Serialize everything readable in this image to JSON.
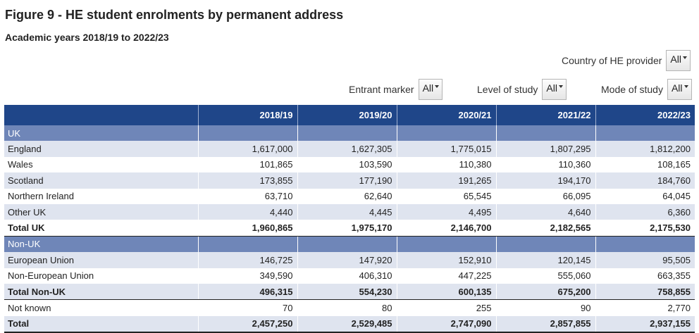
{
  "title": "Figure 9 - HE student enrolments by permanent address",
  "subtitle": "Academic years 2018/19 to 2022/23",
  "filters": {
    "country": {
      "label": "Country of HE provider",
      "value": "All"
    },
    "entrant": {
      "label": "Entrant marker",
      "value": "All"
    },
    "level": {
      "label": "Level of study",
      "value": "All"
    },
    "mode": {
      "label": "Mode of study",
      "value": "All"
    }
  },
  "chart_data": {
    "type": "table",
    "columns": [
      "",
      "2018/19",
      "2019/20",
      "2020/21",
      "2021/22",
      "2022/23"
    ],
    "rows": [
      {
        "kind": "section",
        "label": "UK",
        "values": []
      },
      {
        "kind": "data",
        "label": "England",
        "values": [
          "1,617,000",
          "1,627,305",
          "1,775,015",
          "1,807,295",
          "1,812,200"
        ]
      },
      {
        "kind": "data",
        "label": "Wales",
        "values": [
          "101,865",
          "103,590",
          "110,380",
          "110,360",
          "108,165"
        ]
      },
      {
        "kind": "data",
        "label": "Scotland",
        "values": [
          "173,855",
          "177,190",
          "191,265",
          "194,170",
          "184,760"
        ]
      },
      {
        "kind": "data",
        "label": "Northern Ireland",
        "values": [
          "63,710",
          "62,640",
          "65,545",
          "66,095",
          "64,045"
        ]
      },
      {
        "kind": "data",
        "label": "Other UK",
        "values": [
          "4,440",
          "4,445",
          "4,495",
          "4,640",
          "6,360"
        ]
      },
      {
        "kind": "total",
        "label": "Total UK",
        "values": [
          "1,960,865",
          "1,975,170",
          "2,146,700",
          "2,182,565",
          "2,175,530"
        ]
      },
      {
        "kind": "section",
        "label": "Non-UK",
        "values": []
      },
      {
        "kind": "data",
        "label": "European Union",
        "values": [
          "146,725",
          "147,920",
          "152,910",
          "120,145",
          "95,505"
        ]
      },
      {
        "kind": "data",
        "label": "Non-European Union",
        "values": [
          "349,590",
          "406,310",
          "447,225",
          "555,060",
          "663,355"
        ]
      },
      {
        "kind": "total",
        "label": "Total Non-UK",
        "values": [
          "496,315",
          "554,230",
          "600,135",
          "675,200",
          "758,855"
        ]
      },
      {
        "kind": "data",
        "label": "Not known",
        "values": [
          "70",
          "80",
          "255",
          "90",
          "2,770"
        ]
      },
      {
        "kind": "total",
        "label": "Total",
        "values": [
          "2,457,250",
          "2,529,485",
          "2,747,090",
          "2,857,855",
          "2,937,155"
        ]
      }
    ]
  }
}
